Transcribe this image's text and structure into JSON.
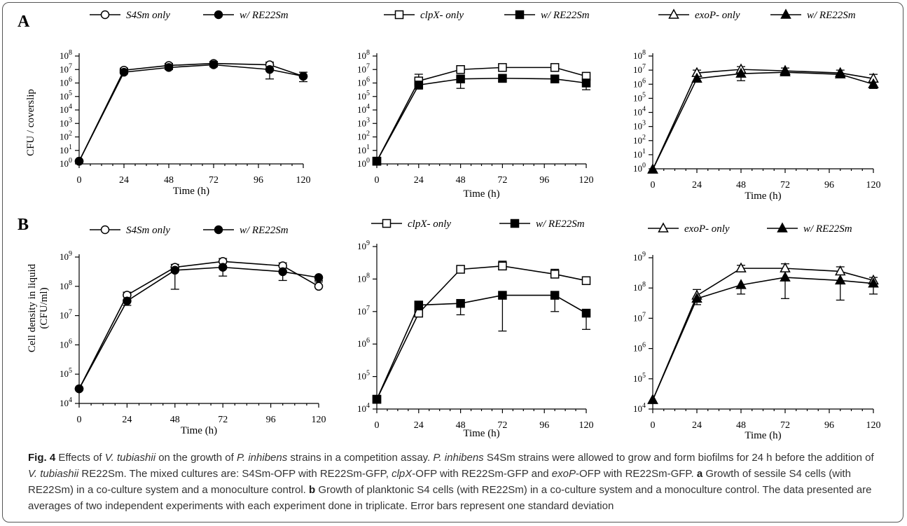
{
  "panels": [
    {
      "id": "A",
      "label": "A",
      "ylabel": "CFU / coverslip",
      "xlabel": "Time (h)"
    },
    {
      "id": "B",
      "label": "B",
      "ylabel_line1": "Cell density in liquid",
      "ylabel_line2": "(CFU/ml)",
      "xlabel": "Time (h)"
    }
  ],
  "caption": {
    "fig_label": "Fig. 4",
    "t1": " Effects of ",
    "sp1": "V. tubiashii",
    "t2": " on the growth of ",
    "sp2": "P. inhibens",
    "t3": " strains in a competition assay. ",
    "sp3": "P. inhibens",
    "t4": " S4Sm strains were allowed to grow and form biofilms for 24 h before the addition of ",
    "sp4": "V. tubiashii",
    "t5": " RE22Sm. The mixed cultures are: S4Sm-OFP with RE22Sm-GFP, ",
    "sp5": "clpX",
    "t6": "-OFP with RE22Sm-GFP and ",
    "sp6": "exoP",
    "t7": "-OFP with RE22Sm-GFP. ",
    "a": "a",
    "t8": " Growth of sessile S4 cells (with RE22Sm) in a co-culture system and a monoculture control. ",
    "b": "b",
    "t9": " Growth of planktonic S4 cells (with RE22Sm) in a co-culture system and a monoculture control. The data presented are averages of two independent experiments with each experiment done in triplicate. Error bars represent one standard deviation"
  },
  "chart_data": [
    {
      "type": "line",
      "panel": "A",
      "position": "left",
      "yscale": "log10",
      "ylim_exp": [
        0,
        8
      ],
      "xlim": [
        0,
        120
      ],
      "xticks": [
        0,
        24,
        48,
        72,
        96,
        120
      ],
      "yticks": [
        "10^0",
        "10^1",
        "10^2",
        "10^3",
        "10^4",
        "10^5",
        "10^6",
        "10^7",
        "10^8"
      ],
      "ylabel": "CFU / coverslip",
      "xlabel": "Time (h)",
      "series": [
        {
          "name": "S4Sm only",
          "marker": "circle-open",
          "x": [
            0,
            24,
            48,
            72,
            102,
            120
          ],
          "log10_y": [
            0.2,
            6.95,
            7.3,
            7.45,
            7.35,
            6.5
          ],
          "err": [
            0,
            0.15,
            0.15,
            0.15,
            0.2,
            0.3
          ]
        },
        {
          "name": "w/ RE22Sm",
          "marker": "circle-filled",
          "x": [
            0,
            24,
            48,
            72,
            102,
            120
          ],
          "log10_y": [
            0.2,
            6.8,
            7.15,
            7.35,
            7.0,
            6.5
          ],
          "err": [
            0,
            0.1,
            0.15,
            0.15,
            0.7,
            0.4
          ]
        }
      ]
    },
    {
      "type": "line",
      "panel": "A",
      "position": "middle",
      "yscale": "log10",
      "ylim_exp": [
        0,
        8
      ],
      "xlim": [
        0,
        120
      ],
      "xticks": [
        0,
        24,
        48,
        72,
        96,
        120
      ],
      "yticks": [
        "10^0",
        "10^1",
        "10^2",
        "10^3",
        "10^4",
        "10^5",
        "10^6",
        "10^7",
        "10^8"
      ],
      "xlabel": "Time (h)",
      "series": [
        {
          "name": "clpX- only",
          "marker": "square-open",
          "x": [
            0,
            24,
            48,
            72,
            102,
            120
          ],
          "log10_y": [
            0.2,
            6.15,
            7.0,
            7.15,
            7.15,
            6.5
          ],
          "err": [
            0,
            0.5,
            0.15,
            0.15,
            0.15,
            0.2
          ]
        },
        {
          "name": "w/ RE22Sm",
          "marker": "square-filled",
          "x": [
            0,
            24,
            48,
            72,
            102,
            120
          ],
          "log10_y": [
            0.2,
            5.85,
            6.3,
            6.35,
            6.3,
            6.0
          ],
          "err": [
            0,
            0.3,
            0.7,
            0.3,
            0.15,
            0.5
          ]
        }
      ]
    },
    {
      "type": "line",
      "panel": "A",
      "position": "right",
      "yscale": "log10",
      "ylim_exp": [
        0,
        8
      ],
      "xlim": [
        0,
        120
      ],
      "xticks": [
        0,
        24,
        48,
        72,
        96,
        120
      ],
      "yticks": [
        "10^0",
        "10^1",
        "10^2",
        "10^3",
        "10^4",
        "10^5",
        "10^6",
        "10^7",
        "10^8"
      ],
      "xlabel": "Time (h)",
      "series": [
        {
          "name": "exoP- only",
          "marker": "triangle-open",
          "x": [
            0,
            24,
            48,
            72,
            102,
            120
          ],
          "log10_y": [
            -0.05,
            6.8,
            7.05,
            6.95,
            6.8,
            6.4
          ],
          "err": [
            0,
            0.2,
            0.2,
            0.2,
            0.2,
            0.3
          ]
        },
        {
          "name": "w/ RE22Sm",
          "marker": "triangle-filled",
          "x": [
            0,
            24,
            48,
            72,
            102,
            120
          ],
          "log10_y": [
            -0.05,
            6.4,
            6.75,
            6.85,
            6.7,
            6.0
          ],
          "err": [
            0,
            0.2,
            0.5,
            0.2,
            0.15,
            0.3
          ]
        }
      ]
    },
    {
      "type": "line",
      "panel": "B",
      "position": "left",
      "yscale": "log10",
      "ylim_exp": [
        4,
        9
      ],
      "xlim": [
        0,
        120
      ],
      "xticks": [
        0,
        24,
        48,
        72,
        96,
        120
      ],
      "yticks": [
        "10^4",
        "10^5",
        "10^6",
        "10^7",
        "10^8",
        "10^9"
      ],
      "ylabel": "Cell density in liquid (CFU/ml)",
      "xlabel": "Time (h)",
      "series": [
        {
          "name": "S4Sm only",
          "marker": "circle-open",
          "x": [
            0,
            24,
            48,
            72,
            102,
            120
          ],
          "log10_y": [
            4.5,
            7.7,
            8.65,
            8.85,
            8.7,
            8.0
          ],
          "err": [
            0,
            0.1,
            0.1,
            0.1,
            0.1,
            0.2
          ]
        },
        {
          "name": "w/ RE22Sm",
          "marker": "circle-filled",
          "x": [
            0,
            24,
            48,
            72,
            102,
            120
          ],
          "log10_y": [
            4.5,
            7.5,
            8.55,
            8.65,
            8.5,
            8.3
          ],
          "err": [
            0,
            0.15,
            0.65,
            0.3,
            0.3,
            0.15
          ]
        }
      ]
    },
    {
      "type": "line",
      "panel": "B",
      "position": "middle",
      "yscale": "log10",
      "ylim_exp": [
        4,
        9
      ],
      "xlim": [
        0,
        120
      ],
      "xticks": [
        0,
        24,
        48,
        72,
        96,
        120
      ],
      "yticks": [
        "10^4",
        "10^5",
        "10^6",
        "10^7",
        "10^8",
        "10^9"
      ],
      "xlabel": "Time (h)",
      "series": [
        {
          "name": "clpX- only",
          "marker": "square-open",
          "x": [
            0,
            24,
            48,
            72,
            102,
            120
          ],
          "log10_y": [
            4.3,
            6.95,
            8.3,
            8.4,
            8.15,
            7.95
          ],
          "err": [
            0,
            0.2,
            0.1,
            0.15,
            0.15,
            0.1
          ]
        },
        {
          "name": "w/ RE22Sm",
          "marker": "square-filled",
          "x": [
            0,
            24,
            48,
            72,
            102,
            120
          ],
          "log10_y": [
            4.3,
            7.2,
            7.25,
            7.5,
            7.5,
            6.95
          ],
          "err": [
            0,
            0.15,
            0.35,
            1.1,
            0.5,
            0.5
          ]
        }
      ]
    },
    {
      "type": "line",
      "panel": "B",
      "position": "right",
      "yscale": "log10",
      "ylim_exp": [
        4,
        9
      ],
      "xlim": [
        0,
        120
      ],
      "xticks": [
        0,
        24,
        48,
        72,
        96,
        120
      ],
      "yticks": [
        "10^4",
        "10^5",
        "10^6",
        "10^7",
        "10^8",
        "10^9"
      ],
      "xlabel": "Time (h)",
      "series": [
        {
          "name": "exoP- only",
          "marker": "triangle-open",
          "x": [
            0,
            24,
            48,
            72,
            102,
            120
          ],
          "log10_y": [
            4.3,
            7.75,
            8.65,
            8.65,
            8.55,
            8.25
          ],
          "err": [
            0,
            0.2,
            0.1,
            0.15,
            0.15,
            0.1
          ]
        },
        {
          "name": "w/ RE22Sm",
          "marker": "triangle-filled",
          "x": [
            0,
            24,
            48,
            72,
            102,
            120
          ],
          "log10_y": [
            4.3,
            7.65,
            8.1,
            8.35,
            8.25,
            8.15
          ],
          "err": [
            0,
            0.2,
            0.3,
            0.7,
            0.65,
            0.35
          ]
        }
      ]
    }
  ]
}
